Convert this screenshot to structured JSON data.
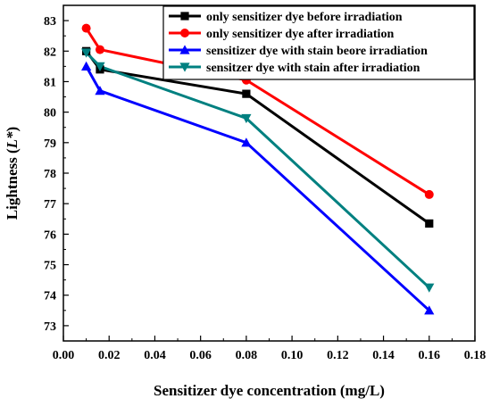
{
  "chart_data": {
    "type": "line",
    "xlabel": "Sensitizer dye concentration (mg/L)",
    "ylabel_main": "Lightness (",
    "ylabel_italic": "L*",
    "ylabel_end": ")",
    "xlim": [
      0.0,
      0.18
    ],
    "ylim": [
      72.5,
      83.5
    ],
    "xticks": [
      "0.00",
      "0.02",
      "0.04",
      "0.06",
      "0.08",
      "0.10",
      "0.12",
      "0.14",
      "0.16",
      "0.18"
    ],
    "yticks": [
      "73",
      "74",
      "75",
      "76",
      "77",
      "78",
      "79",
      "80",
      "81",
      "82",
      "83"
    ],
    "legend_position": "top-right",
    "x": [
      0.01,
      0.016,
      0.08,
      0.16
    ],
    "series": [
      {
        "name": "only sensitizer dye before irradiation",
        "color": "#000000",
        "marker": "square",
        "values": [
          82.0,
          81.4,
          80.6,
          76.35
        ]
      },
      {
        "name": "only sensitizer dye after irradiation",
        "color": "#ff0000",
        "marker": "circle",
        "values": [
          82.75,
          82.05,
          81.05,
          77.3
        ]
      },
      {
        "name": "sensitizer dye with stain beore irradiation",
        "color": "#0000ff",
        "marker": "triangle-up",
        "values": [
          81.5,
          80.7,
          79.0,
          73.5
        ]
      },
      {
        "name": "sensitzer dye with stain after irradiation",
        "color": "#008080",
        "marker": "triangle-down",
        "values": [
          81.95,
          81.5,
          79.8,
          74.25
        ]
      }
    ]
  }
}
